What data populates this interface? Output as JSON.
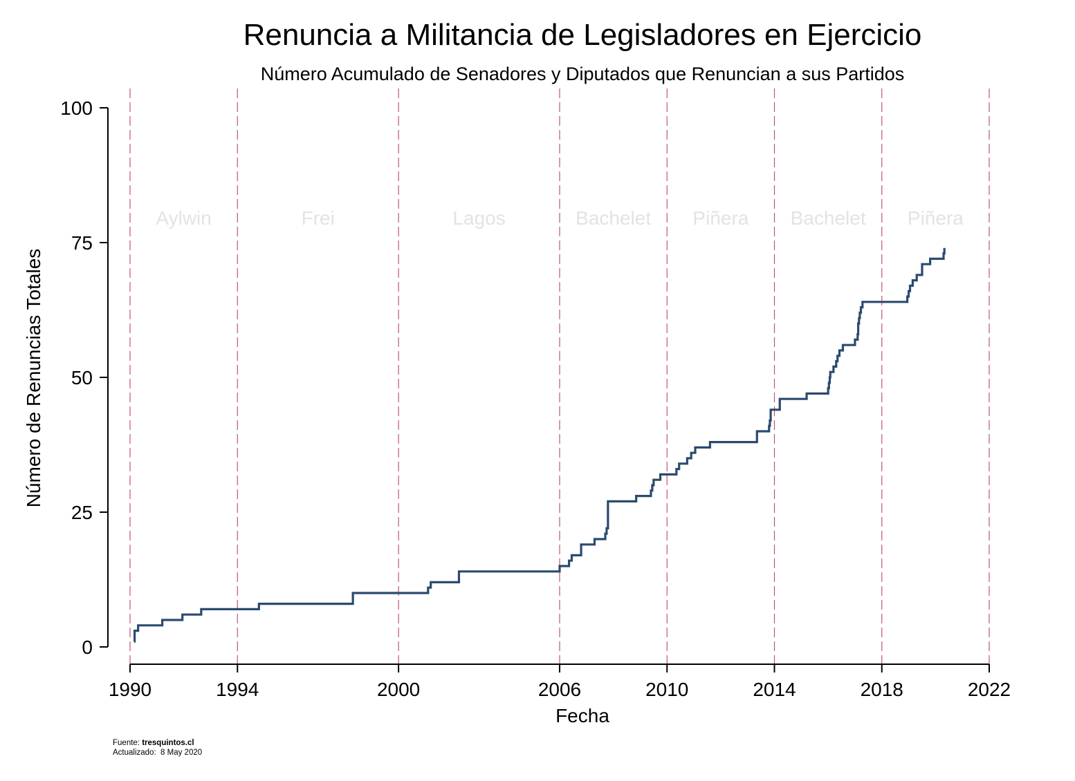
{
  "colors": {
    "line": "#2b4a6f",
    "term_divider": "#c1546e",
    "period_label": "#e3e3e3",
    "axis": "#000000"
  },
  "chart_data": {
    "type": "line",
    "step": "post",
    "title": "Renuncia a Militancia de Legisladores en Ejercicio",
    "subtitle": "Número Acumulado de Senadores y Diputados que Renuncian a sus Partidos",
    "xlabel": "Fecha",
    "ylabel": "Número de Renuncias Totales",
    "xlim": [
      1990,
      2022
    ],
    "ylim": [
      0,
      100
    ],
    "x_ticks": [
      1990,
      1994,
      2000,
      2006,
      2010,
      2014,
      2018,
      2022
    ],
    "y_ticks": [
      0,
      25,
      50,
      75,
      100
    ],
    "grid": false,
    "term_dividers": [
      1990,
      1994,
      2000,
      2006,
      2010,
      2014,
      2018,
      2022
    ],
    "periods": [
      {
        "label": "Aylwin",
        "start": 1990,
        "end": 1994
      },
      {
        "label": "Frei",
        "start": 1994,
        "end": 2000
      },
      {
        "label": "Lagos",
        "start": 2000,
        "end": 2006
      },
      {
        "label": "Bachelet",
        "start": 2006,
        "end": 2010
      },
      {
        "label": "Piñera",
        "start": 2010,
        "end": 2014
      },
      {
        "label": "Bachelet",
        "start": 2014,
        "end": 2018
      },
      {
        "label": "Piñera",
        "start": 2018,
        "end": 2022
      }
    ],
    "series": [
      {
        "x": [
          1990.15,
          1990.17,
          1990.3,
          1991.2,
          1991.95,
          1992.65,
          1994.8,
          1998.3,
          2001.1,
          2001.2,
          2002.25,
          2006.0,
          2006.35,
          2006.45,
          2006.8,
          2007.3,
          2007.7,
          2007.75,
          2007.8,
          2008.85,
          2009.4,
          2009.45,
          2009.5,
          2009.55,
          2009.75,
          2010.35,
          2010.45,
          2010.75,
          2010.9,
          2011.05,
          2011.6,
          2013.35,
          2013.8,
          2013.83,
          2013.86,
          2014.2,
          2015.2,
          2016.0,
          2016.03,
          2016.06,
          2016.08,
          2016.2,
          2016.3,
          2016.35,
          2016.42,
          2016.55,
          2017.0,
          2017.1,
          2017.12,
          2017.15,
          2017.18,
          2017.22,
          2017.28,
          2018.95,
          2019.0,
          2019.05,
          2019.15,
          2019.3,
          2019.5,
          2019.8,
          2020.3,
          2020.33
        ],
        "values": [
          1,
          3,
          4,
          5,
          6,
          7,
          8,
          10,
          11,
          12,
          14,
          15,
          16,
          17,
          19,
          20,
          21,
          22,
          27,
          28,
          29,
          30,
          31,
          31,
          32,
          33,
          34,
          35,
          36,
          37,
          38,
          40,
          41,
          42,
          44,
          46,
          47,
          48,
          49,
          50,
          51,
          52,
          53,
          54,
          55,
          56,
          57,
          58,
          60,
          61,
          62,
          63,
          64,
          65,
          66,
          67,
          68,
          69,
          71,
          72,
          73,
          74
        ]
      }
    ]
  },
  "footer": {
    "source_label": "Fuente:",
    "source_value": "tresquintos.cl",
    "updated_label": "Actualizado:",
    "updated_value": "8 May 2020"
  }
}
